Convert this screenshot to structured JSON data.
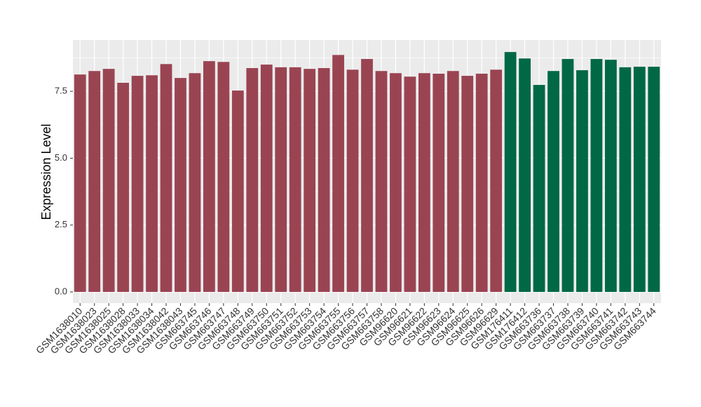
{
  "chart_data": {
    "type": "bar",
    "y_label": "Expression Level",
    "categories": [
      "GSM1638010",
      "GSM1638023",
      "GSM1638025",
      "GSM1638028",
      "GSM1638033",
      "GSM1638034",
      "GSM1638042",
      "GSM1638043",
      "GSM663745",
      "GSM663746",
      "GSM663747",
      "GSM663748",
      "GSM663749",
      "GSM663750",
      "GSM663751",
      "GSM663752",
      "GSM663753",
      "GSM663754",
      "GSM663755",
      "GSM663756",
      "GSM663757",
      "GSM663758",
      "GSM96620",
      "GSM96621",
      "GSM96622",
      "GSM96623",
      "GSM96624",
      "GSM96625",
      "GSM96626",
      "GSM96629",
      "GSM176411",
      "GSM176412",
      "GSM663736",
      "GSM663737",
      "GSM663738",
      "GSM663739",
      "GSM663740",
      "GSM663741",
      "GSM663742",
      "GSM663743",
      "GSM663744"
    ],
    "values": [
      8.13,
      8.26,
      8.34,
      7.82,
      8.08,
      8.1,
      8.52,
      8.0,
      8.18,
      8.63,
      8.6,
      7.53,
      8.37,
      8.5,
      8.4,
      8.4,
      8.34,
      8.37,
      8.86,
      8.31,
      8.71,
      8.26,
      8.18,
      8.05,
      8.18,
      8.16,
      8.26,
      8.08,
      8.16,
      8.31,
      8.97,
      8.73,
      7.74,
      8.26,
      8.71,
      8.29,
      8.71,
      8.68,
      8.4,
      8.42,
      8.42
    ],
    "colors": [
      "#9a4452",
      "#9a4452",
      "#9a4452",
      "#9a4452",
      "#9a4452",
      "#9a4452",
      "#9a4452",
      "#9a4452",
      "#9a4452",
      "#9a4452",
      "#9a4452",
      "#9a4452",
      "#9a4452",
      "#9a4452",
      "#9a4452",
      "#9a4452",
      "#9a4452",
      "#9a4452",
      "#9a4452",
      "#9a4452",
      "#9a4452",
      "#9a4452",
      "#9a4452",
      "#9a4452",
      "#9a4452",
      "#9a4452",
      "#9a4452",
      "#9a4452",
      "#9a4452",
      "#9a4452",
      "#006845",
      "#006845",
      "#006845",
      "#006845",
      "#006845",
      "#006845",
      "#006845",
      "#006845",
      "#006845",
      "#006845",
      "#006845"
    ],
    "ylim": [
      -0.42,
      9.42
    ],
    "yticks": [
      {
        "value": 0,
        "label": "0.0"
      },
      2.5,
      {
        "value": 5,
        "label": "5.0"
      },
      {
        "value": 7.5,
        "label": "7.5"
      }
    ],
    "grid": true
  }
}
